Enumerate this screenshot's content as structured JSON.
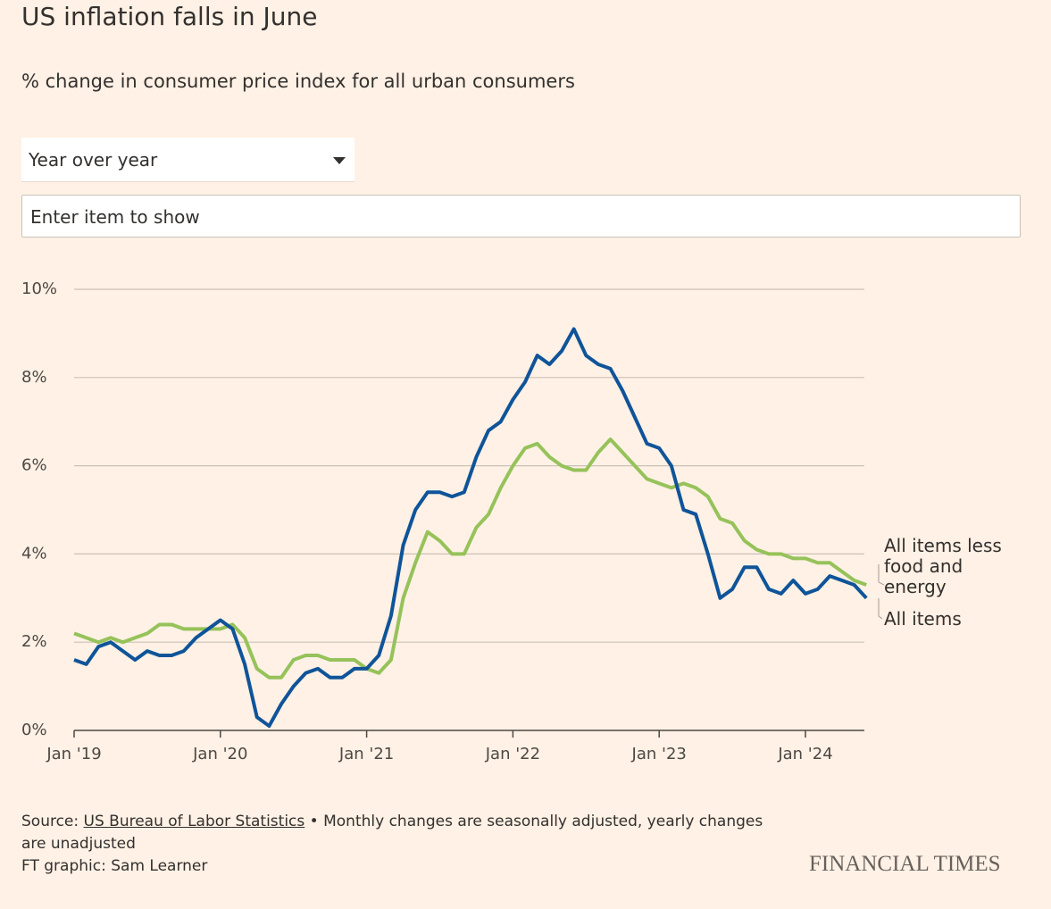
{
  "controls": {
    "dropdown": "Year over year",
    "search_placeholder": "Enter item to show"
  },
  "chart_data": {
    "type": "line",
    "title": "US inflation falls in June",
    "subtitle": "% change in consumer price index for all urban consumers",
    "x": [
      "2019-01",
      "2019-02",
      "2019-03",
      "2019-04",
      "2019-05",
      "2019-06",
      "2019-07",
      "2019-08",
      "2019-09",
      "2019-10",
      "2019-11",
      "2019-12",
      "2020-01",
      "2020-02",
      "2020-03",
      "2020-04",
      "2020-05",
      "2020-06",
      "2020-07",
      "2020-08",
      "2020-09",
      "2020-10",
      "2020-11",
      "2020-12",
      "2021-01",
      "2021-02",
      "2021-03",
      "2021-04",
      "2021-05",
      "2021-06",
      "2021-07",
      "2021-08",
      "2021-09",
      "2021-10",
      "2021-11",
      "2021-12",
      "2022-01",
      "2022-02",
      "2022-03",
      "2022-04",
      "2022-05",
      "2022-06",
      "2022-07",
      "2022-08",
      "2022-09",
      "2022-10",
      "2022-11",
      "2022-12",
      "2023-01",
      "2023-02",
      "2023-03",
      "2023-04",
      "2023-05",
      "2023-06",
      "2023-07",
      "2023-08",
      "2023-09",
      "2023-10",
      "2023-11",
      "2023-12",
      "2024-01",
      "2024-02",
      "2024-03",
      "2024-04",
      "2024-05",
      "2024-06"
    ],
    "xticks": [
      {
        "value": "2019-01",
        "label": "Jan '19"
      },
      {
        "value": "2020-01",
        "label": "Jan '20"
      },
      {
        "value": "2021-01",
        "label": "Jan '21"
      },
      {
        "value": "2022-01",
        "label": "Jan '22"
      },
      {
        "value": "2023-01",
        "label": "Jan '23"
      },
      {
        "value": "2024-01",
        "label": "Jan '24"
      }
    ],
    "ylim": [
      0,
      10
    ],
    "yticks": [
      {
        "value": 0,
        "label": "0%"
      },
      {
        "value": 2,
        "label": "2%"
      },
      {
        "value": 4,
        "label": "4%"
      },
      {
        "value": 6,
        "label": "6%"
      },
      {
        "value": 8,
        "label": "8%"
      },
      {
        "value": 10,
        "label": "10%"
      }
    ],
    "grid": true,
    "series": [
      {
        "name": "All items less food and energy",
        "color": "#96c25a",
        "values": [
          2.2,
          2.1,
          2.0,
          2.1,
          2.0,
          2.1,
          2.2,
          2.4,
          2.4,
          2.3,
          2.3,
          2.3,
          2.3,
          2.4,
          2.1,
          1.4,
          1.2,
          1.2,
          1.6,
          1.7,
          1.7,
          1.6,
          1.6,
          1.6,
          1.4,
          1.3,
          1.6,
          3.0,
          3.8,
          4.5,
          4.3,
          4.0,
          4.0,
          4.6,
          4.9,
          5.5,
          6.0,
          6.4,
          6.5,
          6.2,
          6.0,
          5.9,
          5.9,
          6.3,
          6.6,
          6.3,
          6.0,
          5.7,
          5.6,
          5.5,
          5.6,
          5.5,
          5.3,
          4.8,
          4.7,
          4.3,
          4.1,
          4.0,
          4.0,
          3.9,
          3.9,
          3.8,
          3.8,
          3.6,
          3.4,
          3.3
        ]
      },
      {
        "name": "All items",
        "color": "#0f5499",
        "values": [
          1.6,
          1.5,
          1.9,
          2.0,
          1.8,
          1.6,
          1.8,
          1.7,
          1.7,
          1.8,
          2.1,
          2.3,
          2.5,
          2.3,
          1.5,
          0.3,
          0.1,
          0.6,
          1.0,
          1.3,
          1.4,
          1.2,
          1.2,
          1.4,
          1.4,
          1.7,
          2.6,
          4.2,
          5.0,
          5.4,
          5.4,
          5.3,
          5.4,
          6.2,
          6.8,
          7.0,
          7.5,
          7.9,
          8.5,
          8.3,
          8.6,
          9.1,
          8.5,
          8.3,
          8.2,
          7.7,
          7.1,
          6.5,
          6.4,
          6.0,
          5.0,
          4.9,
          4.0,
          3.0,
          3.2,
          3.7,
          3.7,
          3.2,
          3.1,
          3.4,
          3.1,
          3.2,
          3.5,
          3.4,
          3.3,
          3.0
        ]
      }
    ]
  },
  "footer": {
    "source_label": "Source:",
    "source_link": "US Bureau of Labor Statistics",
    "source_note": "• Monthly changes are seasonally adjusted, yearly changes are unadjusted",
    "credit": "FT graphic: Sam Learner",
    "brand": "FINANCIAL TIMES"
  }
}
